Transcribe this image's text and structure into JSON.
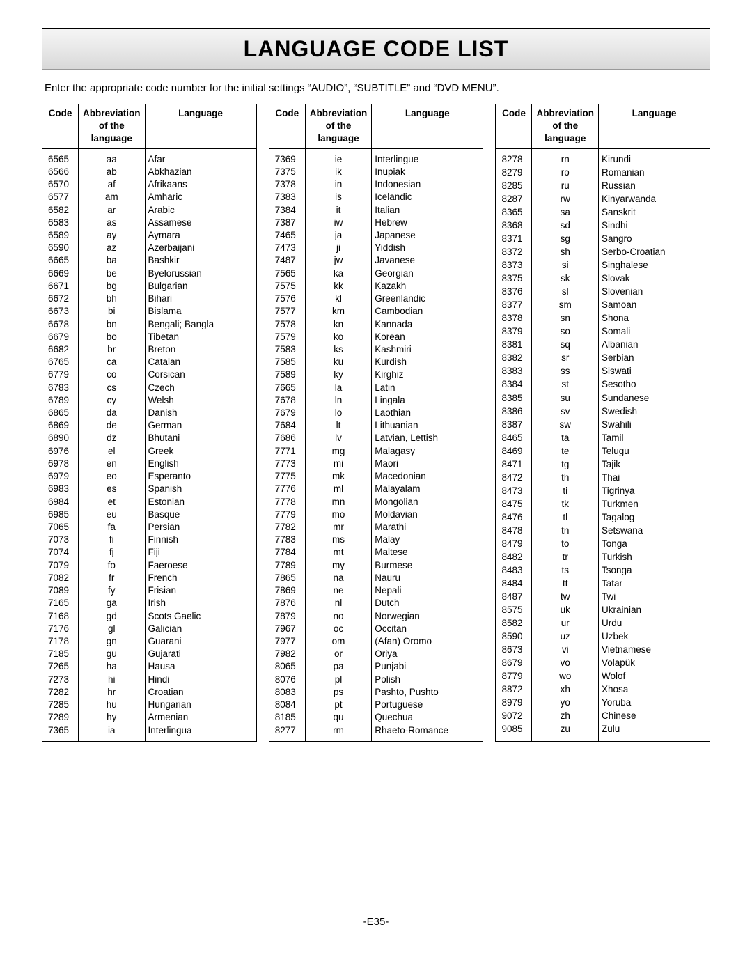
{
  "title": "LANGUAGE CODE LIST",
  "instruction": "Enter the appropriate code number for the initial settings “AUDIO”, “SUBTITLE” and “DVD MENU”.",
  "headers": {
    "code": "Code",
    "abbr1": "Abbreviation",
    "abbr2": "of the",
    "abbr3": "language",
    "lang": "Language"
  },
  "footer": "-E35-",
  "tables": [
    [
      [
        "6565",
        "aa",
        "Afar"
      ],
      [
        "6566",
        "ab",
        "Abkhazian"
      ],
      [
        "6570",
        "af",
        "Afrikaans"
      ],
      [
        "6577",
        "am",
        "Amharic"
      ],
      [
        "6582",
        "ar",
        "Arabic"
      ],
      [
        "6583",
        "as",
        "Assamese"
      ],
      [
        "6589",
        "ay",
        "Aymara"
      ],
      [
        "6590",
        "az",
        "Azerbaijani"
      ],
      [
        "6665",
        "ba",
        "Bashkir"
      ],
      [
        "6669",
        "be",
        "Byelorussian"
      ],
      [
        "6671",
        "bg",
        "Bulgarian"
      ],
      [
        "6672",
        "bh",
        "Bihari"
      ],
      [
        "6673",
        "bi",
        "Bislama"
      ],
      [
        "6678",
        "bn",
        "Bengali; Bangla"
      ],
      [
        "6679",
        "bo",
        "Tibetan"
      ],
      [
        "6682",
        "br",
        "Breton"
      ],
      [
        "6765",
        "ca",
        "Catalan"
      ],
      [
        "6779",
        "co",
        "Corsican"
      ],
      [
        "6783",
        "cs",
        "Czech"
      ],
      [
        "6789",
        "cy",
        "Welsh"
      ],
      [
        "6865",
        "da",
        "Danish"
      ],
      [
        "6869",
        "de",
        "German"
      ],
      [
        "6890",
        "dz",
        "Bhutani"
      ],
      [
        "6976",
        "el",
        "Greek"
      ],
      [
        "6978",
        "en",
        "English"
      ],
      [
        "6979",
        "eo",
        "Esperanto"
      ],
      [
        "6983",
        "es",
        "Spanish"
      ],
      [
        "6984",
        "et",
        "Estonian"
      ],
      [
        "6985",
        "eu",
        "Basque"
      ],
      [
        "7065",
        "fa",
        "Persian"
      ],
      [
        "7073",
        "fi",
        "Finnish"
      ],
      [
        "7074",
        "fj",
        "Fiji"
      ],
      [
        "7079",
        "fo",
        "Faeroese"
      ],
      [
        "7082",
        "fr",
        "French"
      ],
      [
        "7089",
        "fy",
        "Frisian"
      ],
      [
        "7165",
        "ga",
        "Irish"
      ],
      [
        "7168",
        "gd",
        "Scots Gaelic"
      ],
      [
        "7176",
        "gl",
        "Galician"
      ],
      [
        "7178",
        "gn",
        "Guarani"
      ],
      [
        "7185",
        "gu",
        "Gujarati"
      ],
      [
        "7265",
        "ha",
        "Hausa"
      ],
      [
        "7273",
        "hi",
        "Hindi"
      ],
      [
        "7282",
        "hr",
        "Croatian"
      ],
      [
        "7285",
        "hu",
        "Hungarian"
      ],
      [
        "7289",
        "hy",
        "Armenian"
      ],
      [
        "7365",
        "ia",
        "Interlingua"
      ]
    ],
    [
      [
        "7369",
        "ie",
        "Interlingue"
      ],
      [
        "7375",
        "ik",
        "Inupiak"
      ],
      [
        "7378",
        "in",
        "Indonesian"
      ],
      [
        "7383",
        "is",
        "Icelandic"
      ],
      [
        "7384",
        "it",
        "Italian"
      ],
      [
        "7387",
        "iw",
        "Hebrew"
      ],
      [
        "7465",
        "ja",
        "Japanese"
      ],
      [
        "7473",
        "ji",
        "Yiddish"
      ],
      [
        "7487",
        "jw",
        "Javanese"
      ],
      [
        "7565",
        "ka",
        "Georgian"
      ],
      [
        "7575",
        "kk",
        "Kazakh"
      ],
      [
        "7576",
        "kl",
        "Greenlandic"
      ],
      [
        "7577",
        "km",
        "Cambodian"
      ],
      [
        "7578",
        "kn",
        "Kannada"
      ],
      [
        "7579",
        "ko",
        "Korean"
      ],
      [
        "7583",
        "ks",
        "Kashmiri"
      ],
      [
        "7585",
        "ku",
        "Kurdish"
      ],
      [
        "7589",
        "ky",
        "Kirghiz"
      ],
      [
        "7665",
        "la",
        "Latin"
      ],
      [
        "7678",
        "ln",
        "Lingala"
      ],
      [
        "7679",
        "lo",
        "Laothian"
      ],
      [
        "7684",
        "lt",
        "Lithuanian"
      ],
      [
        "7686",
        "lv",
        "Latvian, Lettish"
      ],
      [
        "7771",
        "mg",
        "Malagasy"
      ],
      [
        "7773",
        "mi",
        "Maori"
      ],
      [
        "7775",
        "mk",
        "Macedonian"
      ],
      [
        "7776",
        "ml",
        "Malayalam"
      ],
      [
        "7778",
        "mn",
        "Mongolian"
      ],
      [
        "7779",
        "mo",
        "Moldavian"
      ],
      [
        "7782",
        "mr",
        "Marathi"
      ],
      [
        "7783",
        "ms",
        "Malay"
      ],
      [
        "7784",
        "mt",
        "Maltese"
      ],
      [
        "7789",
        "my",
        "Burmese"
      ],
      [
        "7865",
        "na",
        "Nauru"
      ],
      [
        "7869",
        "ne",
        "Nepali"
      ],
      [
        "7876",
        "nl",
        "Dutch"
      ],
      [
        "7879",
        "no",
        "Norwegian"
      ],
      [
        "7967",
        "oc",
        "Occitan"
      ],
      [
        "7977",
        "om",
        "(Afan) Oromo"
      ],
      [
        "7982",
        "or",
        "Oriya"
      ],
      [
        "8065",
        "pa",
        "Punjabi"
      ],
      [
        "8076",
        "pl",
        "Polish"
      ],
      [
        "8083",
        "ps",
        "Pashto, Pushto"
      ],
      [
        "8084",
        "pt",
        "Portuguese"
      ],
      [
        "8185",
        "qu",
        "Quechua"
      ],
      [
        "8277",
        "rm",
        "Rhaeto-Romance"
      ]
    ],
    [
      [
        "8278",
        "rn",
        "Kirundi"
      ],
      [
        "8279",
        "ro",
        "Romanian"
      ],
      [
        "8285",
        "ru",
        "Russian"
      ],
      [
        "8287",
        "rw",
        "Kinyarwanda"
      ],
      [
        "8365",
        "sa",
        "Sanskrit"
      ],
      [
        "8368",
        "sd",
        "Sindhi"
      ],
      [
        "8371",
        "sg",
        "Sangro"
      ],
      [
        "8372",
        "sh",
        "Serbo-Croatian"
      ],
      [
        "8373",
        "si",
        "Singhalese"
      ],
      [
        "8375",
        "sk",
        "Slovak"
      ],
      [
        "8376",
        "sl",
        "Slovenian"
      ],
      [
        "8377",
        "sm",
        "Samoan"
      ],
      [
        "8378",
        "sn",
        "Shona"
      ],
      [
        "8379",
        "so",
        "Somali"
      ],
      [
        "8381",
        "sq",
        "Albanian"
      ],
      [
        "8382",
        "sr",
        "Serbian"
      ],
      [
        "8383",
        "ss",
        "Siswati"
      ],
      [
        "8384",
        "st",
        "Sesotho"
      ],
      [
        "8385",
        "su",
        "Sundanese"
      ],
      [
        "8386",
        "sv",
        "Swedish"
      ],
      [
        "8387",
        "sw",
        "Swahili"
      ],
      [
        "8465",
        "ta",
        "Tamil"
      ],
      [
        "8469",
        "te",
        "Telugu"
      ],
      [
        "8471",
        "tg",
        "Tajik"
      ],
      [
        "8472",
        "th",
        "Thai"
      ],
      [
        "8473",
        "ti",
        "Tigrinya"
      ],
      [
        "8475",
        "tk",
        "Turkmen"
      ],
      [
        "8476",
        "tl",
        "Tagalog"
      ],
      [
        "8478",
        "tn",
        "Setswana"
      ],
      [
        "8479",
        "to",
        "Tonga"
      ],
      [
        "8482",
        "tr",
        "Turkish"
      ],
      [
        "8483",
        "ts",
        "Tsonga"
      ],
      [
        "8484",
        "tt",
        "Tatar"
      ],
      [
        "8487",
        "tw",
        "Twi"
      ],
      [
        "8575",
        "uk",
        "Ukrainian"
      ],
      [
        "8582",
        "ur",
        "Urdu"
      ],
      [
        "8590",
        "uz",
        "Uzbek"
      ],
      [
        "8673",
        "vi",
        "Vietnamese"
      ],
      [
        "8679",
        "vo",
        "Volapük"
      ],
      [
        "8779",
        "wo",
        "Wolof"
      ],
      [
        "8872",
        "xh",
        "Xhosa"
      ],
      [
        "8979",
        "yo",
        "Yoruba"
      ],
      [
        "9072",
        "zh",
        "Chinese"
      ],
      [
        "9085",
        "zu",
        "Zulu"
      ]
    ]
  ]
}
